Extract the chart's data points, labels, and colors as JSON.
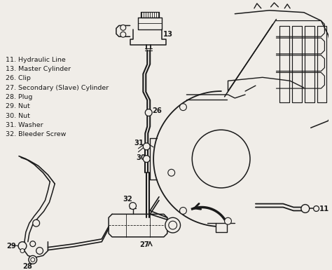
{
  "bg_color": "#f0ede8",
  "line_color": "#1a1a1a",
  "legend_items": [
    {
      "num": "11",
      "label": "Hydraulic Line"
    },
    {
      "num": "13",
      "label": "Master Cylinder"
    },
    {
      "num": "26",
      "label": "Clip"
    },
    {
      "num": "27",
      "label": "Secondary (Slave) Cylinder"
    },
    {
      "num": "28",
      "label": "Plug"
    },
    {
      "num": "29",
      "label": "Nut"
    },
    {
      "num": "30",
      "label": "Nut"
    },
    {
      "num": "31",
      "label": "Washer"
    },
    {
      "num": "32",
      "label": "Bleeder Screw"
    }
  ],
  "label_fontsize": 7.2,
  "legend_fontsize": 6.8
}
